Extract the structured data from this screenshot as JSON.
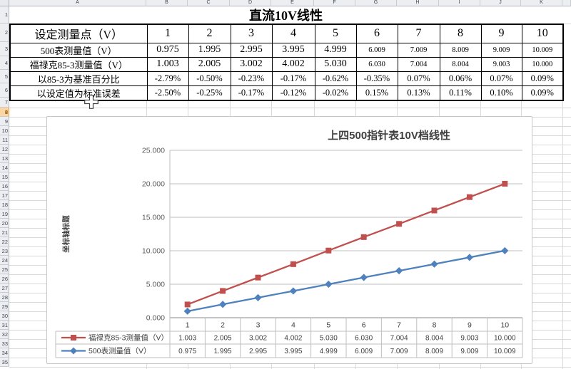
{
  "sheet": {
    "column_headers": [
      "A",
      "B",
      "C",
      "D",
      "E",
      "F",
      "G",
      "H",
      "I",
      "J",
      "K"
    ],
    "active_row": 8
  },
  "worksheet": {
    "title": "直流10V线性",
    "table": {
      "header": {
        "label": "设定测量点（V）",
        "values": [
          "1",
          "2",
          "3",
          "4",
          "5",
          "6",
          "7",
          "8",
          "9",
          "10"
        ]
      },
      "rows": [
        {
          "label": "500表测量值（V）",
          "values": [
            "0.975",
            "1.995",
            "2.995",
            "3.995",
            "4.999",
            "6.009",
            "7.009",
            "8.009",
            "9.009",
            "10.009"
          ]
        },
        {
          "label": "福禄克85-3测量值（V）",
          "values": [
            "1.003",
            "2.005",
            "3.002",
            "4.002",
            "5.030",
            "6.030",
            "7.004",
            "8.004",
            "9.003",
            "10.000"
          ]
        },
        {
          "label": "以85-3为基准百分比",
          "values": [
            "-2.79%",
            "-0.50%",
            "-0.23%",
            "-0.17%",
            "-0.62%",
            "-0.35%",
            "0.07%",
            "0.06%",
            "0.07%",
            "0.09%"
          ]
        },
        {
          "label": "以设定值为标准误差",
          "values": [
            "-2.50%",
            "-0.25%",
            "-0.17%",
            "-0.12%",
            "-0.02%",
            "0.15%",
            "0.13%",
            "0.11%",
            "0.10%",
            "0.09%"
          ]
        }
      ]
    }
  },
  "chart_data": {
    "type": "line",
    "stacked": true,
    "title": "上四500指针表10V档线性",
    "y_axis_title": "坐标轴标题",
    "categories": [
      "1",
      "2",
      "3",
      "4",
      "5",
      "6",
      "7",
      "8",
      "9",
      "10"
    ],
    "series": [
      {
        "name": "福禄克85-3测量值（V）",
        "color": "#C0504D",
        "marker": "square",
        "values": [
          1.003,
          2.005,
          3.002,
          4.002,
          5.03,
          6.03,
          7.004,
          8.004,
          9.003,
          10.0
        ]
      },
      {
        "name": "500表测量值（V）",
        "color": "#4F81BD",
        "marker": "diamond",
        "values": [
          0.975,
          1.995,
          2.995,
          3.995,
          4.999,
          6.009,
          7.009,
          8.009,
          9.009,
          10.009
        ]
      }
    ],
    "stack_base_series": "500表测量值（V）",
    "ylim": [
      0,
      25
    ],
    "y_tick_step": 5,
    "y_tick_labels": [
      "0.000",
      "5.000",
      "10.000",
      "15.000",
      "20.000",
      "25.000"
    ],
    "gridlines": true,
    "data_table": true,
    "legend_position": "data-table-left"
  }
}
